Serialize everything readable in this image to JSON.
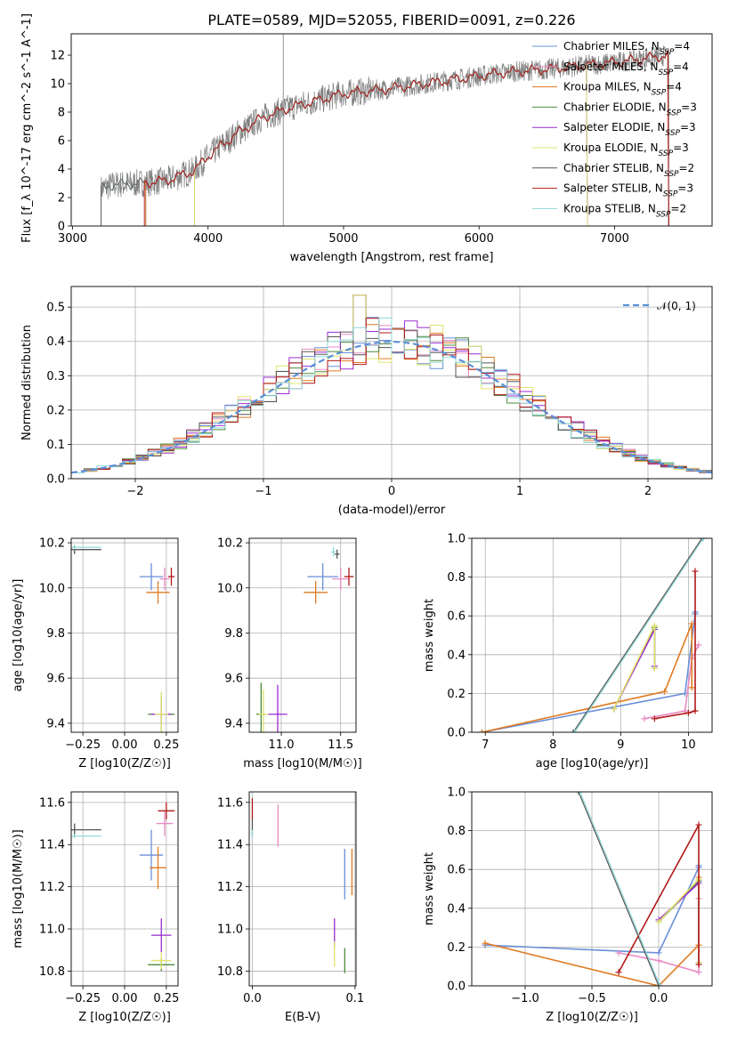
{
  "figure": {
    "title": "PLATE=0589, MJD=52055, FIBERID=0091, z=0.226"
  },
  "colors": {
    "Chabrier MILES": "#6a8fd8",
    "Salpeter MILES": "#e78ac3",
    "Kroupa MILES": "#e07a22",
    "Chabrier ELODIE": "#4d8a3c",
    "Salpeter ELODIE": "#9a2bcf",
    "Kroupa ELODIE": "#dfe36b",
    "Chabrier STELIB": "#555555",
    "Salpeter STELIB": "#b21818",
    "Kroupa STELIB": "#8fd8d8",
    "data": "#7f7f7f",
    "normal": "#5a8fd8"
  },
  "chart_data": [
    {
      "id": "spectrum",
      "type": "line",
      "title": "PLATE=0589, MJD=52055, FIBERID=0091, z=0.226",
      "xlabel": "wavelength [Angstrom, rest frame]",
      "ylabel": "Flux [f_λ 10^-17 erg cm^-2 s^-1 A^-1]",
      "xlim": [
        2990,
        7720
      ],
      "ylim": [
        0,
        13.5
      ],
      "xticks": [
        "3000",
        "4000",
        "5000",
        "6000",
        "7000"
      ],
      "yticks": [
        "0",
        "2",
        "4",
        "6",
        "8",
        "10",
        "12"
      ],
      "grid": false,
      "legend": "top-right",
      "legend_entries": [
        {
          "model": "Chabrier MILES",
          "nssp": "4"
        },
        {
          "model": "Salpeter MILES",
          "nssp": "4"
        },
        {
          "model": "Kroupa MILES",
          "nssp": "4"
        },
        {
          "model": "Chabrier ELODIE",
          "nssp": "3"
        },
        {
          "model": "Salpeter ELODIE",
          "nssp": "3"
        },
        {
          "model": "Kroupa ELODIE",
          "nssp": "3"
        },
        {
          "model": "Chabrier STELIB",
          "nssp": "2"
        },
        {
          "model": "Salpeter STELIB",
          "nssp": "3"
        },
        {
          "model": "Kroupa STELIB",
          "nssp": "2"
        }
      ],
      "continuum": {
        "x": [
          3210,
          3300,
          3500,
          3700,
          3900,
          4000,
          4200,
          4400,
          4600,
          4800,
          5000,
          5300,
          5600,
          5900,
          6200,
          6500,
          6800,
          7100,
          7400,
          7700
        ],
        "y": [
          2.6,
          2.9,
          3.0,
          3.2,
          3.9,
          4.9,
          6.4,
          7.6,
          8.3,
          8.8,
          9.3,
          9.6,
          10.0,
          10.4,
          10.8,
          11.0,
          11.3,
          11.6,
          12.0,
          12.3
        ]
      }
    },
    {
      "id": "residuals",
      "type": "step",
      "xlabel": "(data-model)/error",
      "ylabel": "Normed distribution",
      "xlim": [
        -2.5,
        2.5
      ],
      "ylim": [
        0,
        0.56
      ],
      "xticks": [
        "−2",
        "−1",
        "0",
        "1",
        "2"
      ],
      "yticks": [
        "0.0",
        "0.1",
        "0.2",
        "0.3",
        "0.4",
        "0.5"
      ],
      "grid": true,
      "legend": "top-right",
      "legend_entries": [
        {
          "name": "𝒩(0, 1)"
        }
      ],
      "bin_width": 0.1
    },
    {
      "id": "age-vs-z",
      "type": "scatter",
      "xlabel": "Z [log10(Z/Z☉)]",
      "ylabel": "age  [log10(age/yr)]",
      "xlim": [
        -0.32,
        0.32
      ],
      "ylim": [
        9.36,
        10.22
      ],
      "xticks": [
        "−0.25",
        "0.00",
        "0.25"
      ],
      "yticks": [
        "9.4",
        "9.6",
        "9.8",
        "10.0",
        "10.2"
      ],
      "grid": true,
      "points": [
        {
          "model": "Chabrier MILES",
          "x": 0.16,
          "y": 10.05,
          "xerr": 0.07,
          "yerr": 0.06
        },
        {
          "model": "Salpeter MILES",
          "x": 0.24,
          "y": 10.04,
          "xerr": 0.03,
          "yerr": 0.05
        },
        {
          "model": "Kroupa MILES",
          "x": 0.2,
          "y": 9.98,
          "xerr": 0.07,
          "yerr": 0.05
        },
        {
          "model": "Chabrier ELODIE",
          "x": 0.22,
          "y": 9.44,
          "xerr": 0.08,
          "yerr": 0.08
        },
        {
          "model": "Salpeter ELODIE",
          "x": 0.22,
          "y": 9.44,
          "xerr": 0.06,
          "yerr": 0.04
        },
        {
          "model": "Kroupa ELODIE",
          "x": 0.22,
          "y": 9.44,
          "xerr": 0.04,
          "yerr": 0.1
        },
        {
          "model": "Chabrier STELIB",
          "x": -0.3,
          "y": 10.17,
          "xerr": 0.16,
          "yerr": 0.02
        },
        {
          "model": "Salpeter STELIB",
          "x": 0.28,
          "y": 10.05,
          "xerr": 0.02,
          "yerr": 0.04
        },
        {
          "model": "Kroupa STELIB",
          "x": -0.3,
          "y": 10.18,
          "xerr": 0.16,
          "yerr": 0.01
        }
      ]
    },
    {
      "id": "age-vs-mass",
      "type": "scatter",
      "xlabel": "mass [log10(M/M☉)]",
      "ylabel": "",
      "xlim": [
        10.73,
        11.63
      ],
      "ylim": [
        9.36,
        10.22
      ],
      "xticks": [
        "11.0",
        "11.5"
      ],
      "yticks": [
        "9.4",
        "9.6",
        "9.8",
        "10.0",
        "10.2"
      ],
      "grid": true,
      "points": [
        {
          "model": "Chabrier MILES",
          "x": 11.35,
          "y": 10.05,
          "xerr": 0.13,
          "yerr": 0.06
        },
        {
          "model": "Salpeter MILES",
          "x": 11.5,
          "y": 10.04,
          "xerr": 0.07,
          "yerr": 0.05
        },
        {
          "model": "Kroupa MILES",
          "x": 11.29,
          "y": 9.98,
          "xerr": 0.1,
          "yerr": 0.05
        },
        {
          "model": "Chabrier ELODIE",
          "x": 10.83,
          "y": 9.44,
          "xerr": 0.04,
          "yerr": 0.14
        },
        {
          "model": "Salpeter ELODIE",
          "x": 10.97,
          "y": 9.44,
          "xerr": 0.08,
          "yerr": 0.13
        },
        {
          "model": "Kroupa ELODIE",
          "x": 10.85,
          "y": 9.44,
          "xerr": 0.04,
          "yerr": 0.11
        },
        {
          "model": "Chabrier STELIB",
          "x": 11.47,
          "y": 10.15,
          "xerr": 0.02,
          "yerr": 0.02
        },
        {
          "model": "Salpeter STELIB",
          "x": 11.57,
          "y": 10.05,
          "xerr": 0.04,
          "yerr": 0.04
        },
        {
          "model": "Kroupa STELIB",
          "x": 11.44,
          "y": 10.16,
          "xerr": 0.02,
          "yerr": 0.02
        }
      ]
    },
    {
      "id": "mass-weight-vs-age",
      "type": "line",
      "xlabel": "age  [log10(age/yr)]",
      "ylabel": "mass weight",
      "xlim": [
        6.8,
        10.35
      ],
      "ylim": [
        0,
        1.0
      ],
      "xticks": [
        "7",
        "8",
        "9",
        "10"
      ],
      "yticks": [
        "0.0",
        "0.2",
        "0.4",
        "0.6",
        "0.8",
        "1.0"
      ],
      "grid": true,
      "series": [
        {
          "model": "Chabrier MILES",
          "x": [
            6.95,
            9.95,
            10.1,
            10.1
          ],
          "y": [
            0.0,
            0.2,
            0.61,
            0.62
          ]
        },
        {
          "model": "Salpeter MILES",
          "x": [
            9.35,
            9.95,
            10.05,
            10.15
          ],
          "y": [
            0.07,
            0.11,
            0.38,
            0.45
          ]
        },
        {
          "model": "Kroupa MILES",
          "x": [
            6.95,
            9.65,
            10.05,
            10.05
          ],
          "y": [
            0.0,
            0.21,
            0.56,
            0.23
          ]
        },
        {
          "model": "Chabrier ELODIE",
          "x": [
            8.9,
            9.5,
            9.5
          ],
          "y": [
            0.12,
            0.54,
            0.33
          ]
        },
        {
          "model": "Salpeter ELODIE",
          "x": [
            8.9,
            9.5,
            9.5
          ],
          "y": [
            0.12,
            0.53,
            0.34
          ]
        },
        {
          "model": "Kroupa ELODIE",
          "x": [
            8.9,
            9.5,
            9.5
          ],
          "y": [
            0.12,
            0.55,
            0.33
          ]
        },
        {
          "model": "Chabrier STELIB",
          "x": [
            8.3,
            10.2
          ],
          "y": [
            0.0,
            1.0
          ]
        },
        {
          "model": "Salpeter STELIB",
          "x": [
            9.5,
            10.0,
            10.1,
            10.1
          ],
          "y": [
            0.07,
            0.1,
            0.11,
            0.83
          ]
        },
        {
          "model": "Kroupa STELIB",
          "x": [
            8.32,
            10.22
          ],
          "y": [
            0.0,
            1.0
          ]
        }
      ]
    },
    {
      "id": "mass-vs-z",
      "type": "scatter",
      "xlabel": "Z [log10(Z/Z☉)]",
      "ylabel": "mass [log10(M/M☉)]",
      "xlim": [
        -0.32,
        0.32
      ],
      "ylim": [
        10.73,
        11.65
      ],
      "xticks": [
        "−0.25",
        "0.00",
        "0.25"
      ],
      "yticks": [
        "10.8",
        "11.0",
        "11.2",
        "11.4",
        "11.6"
      ],
      "grid": true,
      "points": [
        {
          "model": "Chabrier MILES",
          "x": 0.16,
          "y": 11.35,
          "xerr": 0.07,
          "yerr": 0.12
        },
        {
          "model": "Salpeter MILES",
          "x": 0.24,
          "y": 11.5,
          "xerr": 0.05,
          "yerr": 0.06
        },
        {
          "model": "Kroupa MILES",
          "x": 0.2,
          "y": 11.29,
          "xerr": 0.05,
          "yerr": 0.1
        },
        {
          "model": "Chabrier ELODIE",
          "x": 0.22,
          "y": 10.83,
          "xerr": 0.08,
          "yerr": 0.03
        },
        {
          "model": "Salpeter ELODIE",
          "x": 0.22,
          "y": 10.97,
          "xerr": 0.06,
          "yerr": 0.08
        },
        {
          "model": "Kroupa ELODIE",
          "x": 0.22,
          "y": 10.85,
          "xerr": 0.06,
          "yerr": 0.04
        },
        {
          "model": "Chabrier STELIB",
          "x": -0.3,
          "y": 11.47,
          "xerr": 0.16,
          "yerr": 0.03
        },
        {
          "model": "Salpeter STELIB",
          "x": 0.25,
          "y": 11.56,
          "xerr": 0.05,
          "yerr": 0.04
        },
        {
          "model": "Kroupa STELIB",
          "x": -0.3,
          "y": 11.44,
          "xerr": 0.16,
          "yerr": 0.01
        }
      ]
    },
    {
      "id": "mass-vs-ebv",
      "type": "scatter",
      "xlabel": "E(B-V)",
      "ylabel": "",
      "xlim": [
        -0.003,
        0.101
      ],
      "ylim": [
        10.73,
        11.65
      ],
      "xticks": [
        "0.0",
        "0.1"
      ],
      "yticks": [
        "10.8",
        "11.0",
        "11.2",
        "11.4",
        "11.6"
      ],
      "grid": true,
      "points": [
        {
          "model": "Chabrier MILES",
          "x": 0.09,
          "y": 11.26,
          "xerr": 0.0,
          "yerr": 0.12
        },
        {
          "model": "Salpeter MILES",
          "x": 0.025,
          "y": 11.49,
          "xerr": 0.0,
          "yerr": 0.1
        },
        {
          "model": "Kroupa MILES",
          "x": 0.097,
          "y": 11.27,
          "xerr": 0.0,
          "yerr": 0.11
        },
        {
          "model": "Chabrier ELODIE",
          "x": 0.09,
          "y": 10.85,
          "xerr": 0.0,
          "yerr": 0.06
        },
        {
          "model": "Salpeter ELODIE",
          "x": 0.08,
          "y": 10.98,
          "xerr": 0.0,
          "yerr": 0.07
        },
        {
          "model": "Kroupa ELODIE",
          "x": 0.08,
          "y": 10.88,
          "xerr": 0.0,
          "yerr": 0.06
        },
        {
          "model": "Chabrier STELIB",
          "x": 0.0,
          "y": 11.48,
          "xerr": 0.0,
          "yerr": 0.04
        },
        {
          "model": "Salpeter STELIB",
          "x": 0.0,
          "y": 11.57,
          "xerr": 0.0,
          "yerr": 0.05
        },
        {
          "model": "Kroupa STELIB",
          "x": 0.0,
          "y": 11.45,
          "xerr": 0.0,
          "yerr": 0.02
        }
      ]
    },
    {
      "id": "mass-weight-vs-z",
      "type": "line",
      "xlabel": "Z [log10(Z/Z☉)]",
      "ylabel": "mass weight",
      "xlim": [
        -1.4,
        0.4
      ],
      "ylim": [
        0,
        1.0
      ],
      "xticks": [
        "−1.0",
        "−0.5",
        "0.0"
      ],
      "yticks": [
        "0.0",
        "0.2",
        "0.4",
        "0.6",
        "0.8",
        "1.0"
      ],
      "grid": true,
      "series": [
        {
          "model": "Chabrier MILES",
          "x": [
            -1.3,
            0.0,
            0.3,
            0.3
          ],
          "y": [
            0.21,
            0.17,
            0.61,
            0.62
          ]
        },
        {
          "model": "Salpeter MILES",
          "x": [
            -0.3,
            0.0,
            0.3,
            0.3
          ],
          "y": [
            0.17,
            0.13,
            0.07,
            0.45
          ]
        },
        {
          "model": "Kroupa MILES",
          "x": [
            -1.3,
            0.0,
            0.3,
            0.3
          ],
          "y": [
            0.22,
            0.0,
            0.21,
            0.56
          ]
        },
        {
          "model": "Chabrier ELODIE",
          "x": [
            0.0,
            0.3,
            0.3
          ],
          "y": [
            0.33,
            0.54,
            0.12
          ]
        },
        {
          "model": "Salpeter ELODIE",
          "x": [
            0.0,
            0.3,
            0.3
          ],
          "y": [
            0.34,
            0.53,
            0.12
          ]
        },
        {
          "model": "Kroupa ELODIE",
          "x": [
            0.0,
            0.3,
            0.3
          ],
          "y": [
            0.33,
            0.55,
            0.12
          ]
        },
        {
          "model": "Chabrier STELIB",
          "x": [
            -0.6,
            0.0
          ],
          "y": [
            1.0,
            0.0
          ]
        },
        {
          "model": "Salpeter STELIB",
          "x": [
            -0.3,
            0.3,
            0.3
          ],
          "y": [
            0.07,
            0.83,
            0.11
          ]
        },
        {
          "model": "Kroupa STELIB",
          "x": [
            -0.59,
            0.01
          ],
          "y": [
            1.0,
            0.0
          ]
        }
      ]
    }
  ]
}
